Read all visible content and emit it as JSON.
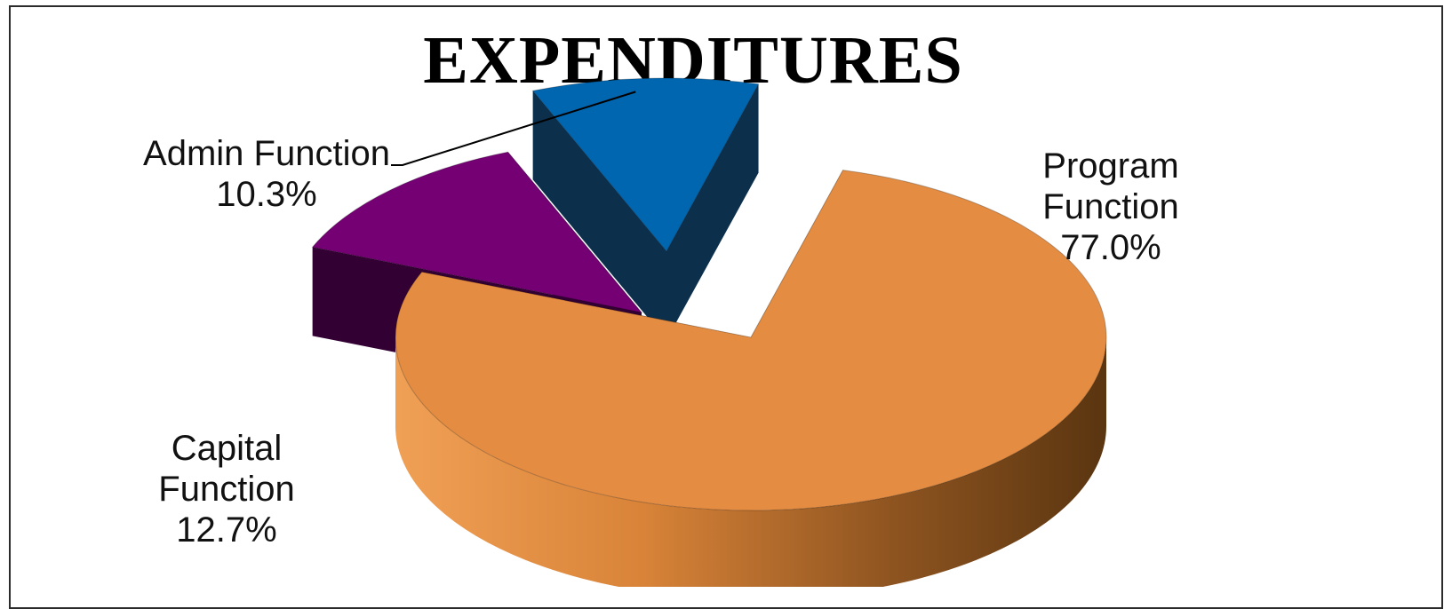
{
  "chart_data": {
    "type": "pie",
    "title": "EXPENDITURES",
    "style": "3d-exploded",
    "slices": [
      {
        "name": "Program Function",
        "value": 77.0,
        "label": "Program\nFunction\n77.0%",
        "color": "#E38C42",
        "side_color": "#8A4E1E"
      },
      {
        "name": "Capital Function",
        "value": 12.7,
        "label": "Capital\nFunction\n12.7%",
        "color": "#740073",
        "side_color": "#330033"
      },
      {
        "name": "Admin Function",
        "value": 10.3,
        "label": "Admin Function\n10.3%",
        "color": "#0066B0",
        "side_color": "#0C2F4C"
      }
    ]
  }
}
